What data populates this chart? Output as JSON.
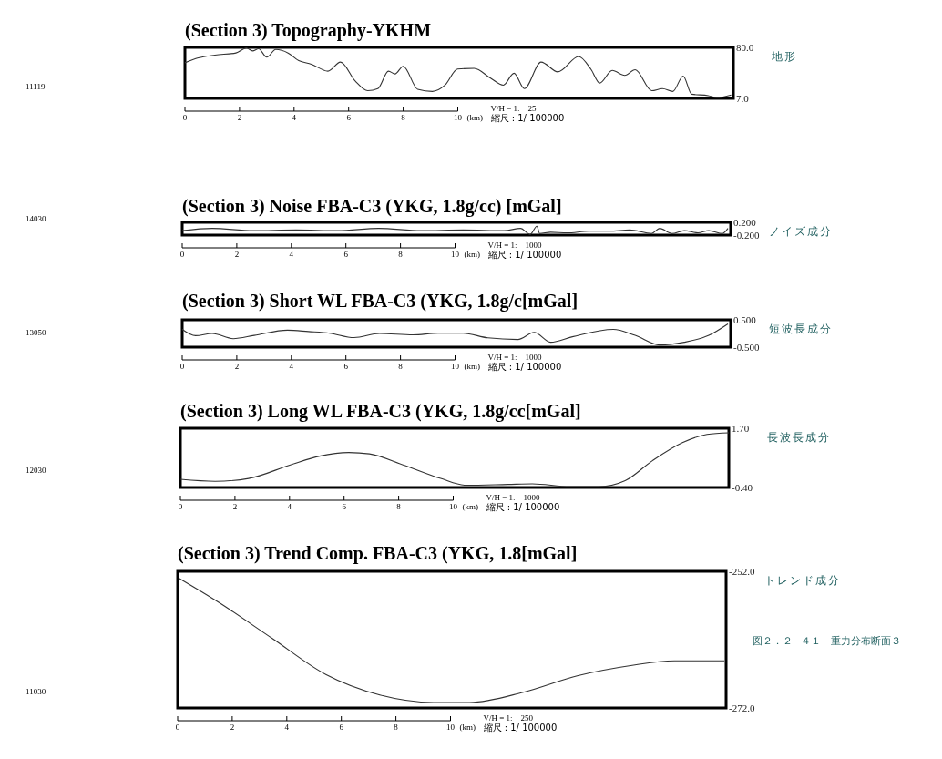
{
  "chart_data": [
    {
      "type": "line",
      "title": "(Section 3) Topography-YKHM",
      "xlabel": "(km)",
      "ylabel": "地形",
      "xlim": [
        0,
        20.1
      ],
      "xticks": [
        0,
        2,
        4,
        6,
        8,
        10
      ],
      "ylim": [
        7,
        80
      ],
      "yticks": [
        {
          "value": 80,
          "label": "80.0"
        },
        {
          "value": 7,
          "label": "7.0"
        }
      ],
      "x": [
        0,
        0.49,
        1.1,
        1.87,
        2.25,
        2.48,
        2.7,
        3.0,
        3.33,
        3.78,
        4.17,
        4.63,
        5.24,
        5.7,
        6.24,
        6.7,
        7.07,
        7.46,
        7.7,
        8.0,
        8.53,
        9.07,
        9.53,
        9.99,
        10.6,
        11.2,
        11.67,
        12.06,
        12.44,
        13.05,
        13.67,
        14.43,
        14.89,
        15.2,
        15.66,
        16.12,
        16.5,
        17.11,
        17.5,
        17.88,
        18.26,
        18.57,
        19.18,
        19.49,
        20.02
      ],
      "series": [
        {
          "color": "#333333",
          "values": [
            58,
            65,
            69,
            72,
            79,
            75,
            78,
            66,
            77,
            72,
            61,
            56,
            46,
            59,
            32,
            18,
            21,
            46,
            42,
            53,
            20,
            17,
            26,
            49,
            50,
            36,
            26,
            43,
            21,
            59,
            45,
            67,
            48,
            29,
            47,
            40,
            48,
            18,
            21,
            17,
            39,
            13,
            11,
            8,
            12
          ]
        }
      ],
      "annotations": [
        "V/H = 1:    25",
        "縮尺 : 1/ 100000",
        "11119"
      ]
    },
    {
      "type": "line",
      "title": "(Section 3) Noise FBA-C3 (YKG, 1.8g/cc) [mGal]",
      "xlabel": "(km)",
      "ylabel": "ノイズ成分",
      "xlim": [
        0,
        20.1
      ],
      "xticks": [
        0,
        2,
        4,
        6,
        8,
        10
      ],
      "ylim": [
        -0.2,
        0.2
      ],
      "yticks": [
        {
          "value": 0.2,
          "label": "0.200"
        },
        {
          "value": -0.2,
          "label": "-0.200"
        }
      ],
      "x": [
        0,
        1.1,
        2.6,
        4.17,
        5.7,
        7.2,
        8.76,
        10.3,
        11.8,
        12.4,
        12.75,
        13.0,
        13.1,
        13.5,
        14.1,
        14.9,
        15.66,
        16.4,
        17.2,
        17.5,
        17.95,
        18.4,
        18.9,
        19.3,
        19.8,
        20.0
      ],
      "series": [
        {
          "color": "#333333",
          "values": [
            -0.06,
            0.01,
            -0.06,
            -0.04,
            -0.06,
            0.01,
            -0.06,
            -0.04,
            -0.06,
            0.01,
            -0.18,
            0.08,
            -0.15,
            -0.11,
            -0.13,
            -0.08,
            -0.08,
            -0.04,
            -0.15,
            0.01,
            -0.15,
            -0.06,
            -0.13,
            -0.06,
            -0.15,
            0.01
          ]
        }
      ],
      "annotations": [
        "V/H = 1:    1000",
        "縮尺 : 1/ 100000",
        "14030"
      ]
    },
    {
      "type": "line",
      "title": "(Section 3) Short WL FBA-C3 (YKG, 1.8g/c[mGal]",
      "xlabel": "(km)",
      "ylabel": "短波長成分",
      "xlim": [
        0,
        20.1
      ],
      "xticks": [
        0,
        2,
        4,
        6,
        8,
        10
      ],
      "ylim": [
        -0.5,
        0.5
      ],
      "yticks": [
        {
          "value": 0.5,
          "label": "0.500"
        },
        {
          "value": -0.5,
          "label": "-0.500"
        }
      ],
      "x": [
        0,
        0.49,
        1.1,
        1.87,
        2.64,
        3.86,
        4.63,
        5.4,
        6.3,
        7.23,
        8.46,
        9.38,
        10.3,
        11.2,
        12.3,
        12.9,
        13.5,
        14.3,
        15.8,
        16.6,
        17.5,
        18.4,
        19.3,
        20.0
      ],
      "series": [
        {
          "color": "#333333",
          "values": [
            0.15,
            -0.08,
            0,
            -0.19,
            -0.07,
            0.12,
            0.07,
            0.01,
            -0.15,
            0,
            -0.05,
            0.01,
            0.01,
            -0.16,
            -0.22,
            0.04,
            -0.32,
            -0.12,
            0.15,
            -0.07,
            -0.42,
            -0.32,
            -0.07,
            0.35
          ]
        }
      ],
      "annotations": [
        "V/H = 1:    1000",
        "縮尺 : 1/ 100000",
        "13050"
      ]
    },
    {
      "type": "line",
      "title": "(Section 3) Long WL FBA-C3 (YKG, 1.8g/cc[mGal]",
      "xlabel": "(km)",
      "ylabel": "長波長成分",
      "xlim": [
        0,
        20.1
      ],
      "xticks": [
        0,
        2,
        4,
        6,
        8,
        10
      ],
      "ylim": [
        -0.4,
        1.7
      ],
      "yticks": [
        {
          "value": 1.7,
          "label": "1.70"
        },
        {
          "value": -0.4,
          "label": "-0.40"
        }
      ],
      "x": [
        0,
        1.27,
        2.5,
        4.03,
        5.1,
        6.17,
        6.93,
        8.16,
        9.54,
        10.46,
        12.0,
        12.9,
        14.28,
        15.35,
        16.3,
        17.3,
        18.4,
        19.3,
        20.1
      ],
      "series": [
        {
          "color": "#333333",
          "values": [
            -0.11,
            -0.18,
            -0.08,
            0.4,
            0.71,
            0.84,
            0.79,
            0.4,
            -0.08,
            -0.32,
            -0.29,
            -0.27,
            -0.37,
            -0.37,
            -0.16,
            0.55,
            1.19,
            1.48,
            1.54
          ]
        }
      ],
      "annotations": [
        "V/H = 1:    1000",
        "縮尺 : 1/ 100000",
        "12030"
      ]
    },
    {
      "type": "line",
      "title": "(Section 3) Trend Comp. FBA-C3 (YKG, 1.8[mGal]",
      "xlabel": "(km)",
      "ylabel": "トレンド成分",
      "xlim": [
        0,
        20.1
      ],
      "xticks": [
        0,
        2,
        4,
        6,
        8,
        10
      ],
      "ylim": [
        -272,
        -252
      ],
      "yticks": [
        {
          "value": -252,
          "label": "-252.0"
        },
        {
          "value": -272,
          "label": "-272.0"
        }
      ],
      "x": [
        0.04,
        1.49,
        3.46,
        5.43,
        7.41,
        9.38,
        10.7,
        12.67,
        14.64,
        16.6,
        18.2,
        20.04
      ],
      "series": [
        {
          "color": "#333333",
          "values": [
            -253,
            -256.5,
            -261.8,
            -267.1,
            -270.1,
            -271.2,
            -271.2,
            -269.7,
            -267.3,
            -265.8,
            -265.1,
            -265.1
          ]
        }
      ],
      "annotations": [
        "V/H = 1:    250",
        "縮尺 : 1/ 100000",
        "11030",
        "図２．２−４１　重力分布断面３"
      ]
    }
  ]
}
